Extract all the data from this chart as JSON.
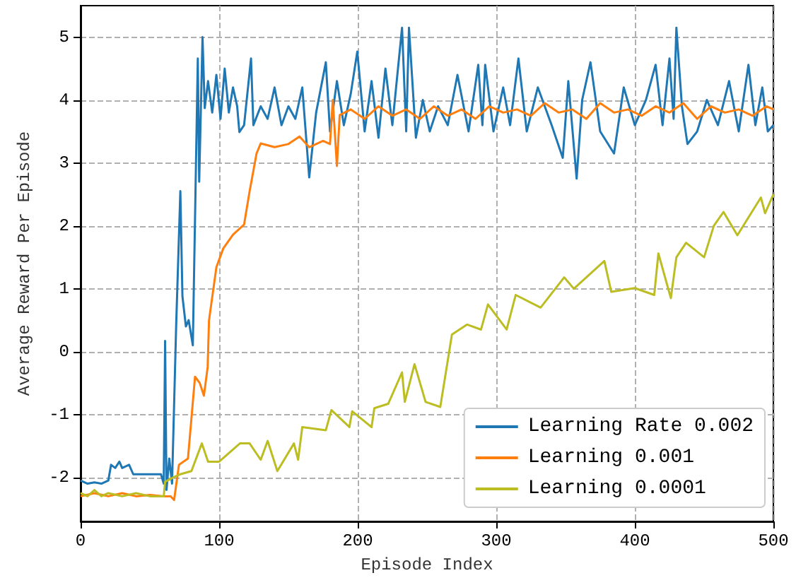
{
  "chart_data": {
    "type": "line",
    "xlabel": "Episode Index",
    "ylabel": "Average Reward Per Episode",
    "xlim": [
      0,
      500
    ],
    "xticks": [
      0,
      100,
      200,
      300,
      400,
      500
    ],
    "ylim": [
      -2.7,
      5.5
    ],
    "yticks": [
      -2,
      -1,
      0,
      1,
      2,
      3,
      4,
      5
    ],
    "grid": true,
    "legend": "bottom right",
    "line_style": "solid",
    "marker": "none",
    "series": [
      {
        "name": "Learning Rate 0.002",
        "color": "#1f77b4",
        "x": [
          0,
          5,
          10,
          15,
          20,
          22,
          25,
          28,
          30,
          35,
          38,
          40,
          50,
          58,
          60,
          61,
          62,
          64,
          66,
          69,
          72,
          73.5,
          76,
          78,
          81,
          84.6,
          85.6,
          88,
          89.6,
          92,
          95,
          98,
          101,
          104,
          107,
          110,
          113,
          114.6,
          118,
          123,
          124.7,
          130,
          135,
          140,
          145,
          150,
          155,
          160,
          165,
          170,
          177,
          180,
          185,
          190,
          195,
          199.7,
          205,
          210,
          215,
          220,
          225,
          232,
          235,
          237,
          242,
          247,
          252,
          258,
          265,
          272,
          280,
          287,
          290,
          292,
          298,
          305,
          310,
          316,
          322,
          330,
          340,
          348,
          352,
          358,
          362,
          368,
          375,
          385,
          392,
          400,
          408,
          415,
          420,
          425,
          428,
          430,
          434,
          438,
          445,
          452,
          460,
          468,
          475,
          482,
          487,
          492,
          496,
          500
        ],
        "values": [
          -2.05,
          -2.1,
          -2.08,
          -2.1,
          -2.05,
          -1.8,
          -1.85,
          -1.75,
          -1.85,
          -1.8,
          -1.95,
          -1.95,
          -1.95,
          -1.95,
          -2.1,
          0.17,
          -2.2,
          -1.7,
          -2.1,
          0.43,
          2.55,
          0.88,
          0.4,
          0.5,
          0.1,
          4.66,
          2.7,
          5.0,
          3.87,
          4.3,
          3.8,
          4.4,
          3.7,
          4.5,
          3.8,
          4.2,
          3.9,
          3.49,
          3.6,
          4.66,
          3.6,
          3.9,
          3.7,
          4.2,
          3.6,
          3.9,
          3.7,
          4.2,
          2.77,
          3.8,
          4.6,
          3.5,
          4.3,
          3.6,
          4.1,
          4.77,
          3.5,
          4.3,
          3.4,
          4.5,
          3.6,
          5.15,
          3.5,
          5.15,
          3.4,
          4.0,
          3.5,
          3.9,
          3.6,
          4.4,
          3.5,
          4.56,
          3.6,
          4.56,
          3.5,
          4.2,
          3.6,
          4.66,
          3.5,
          4.2,
          3.6,
          3.08,
          4.3,
          2.75,
          4.0,
          4.6,
          3.5,
          3.15,
          4.2,
          3.6,
          4.0,
          4.56,
          3.6,
          4.66,
          3.7,
          5.15,
          3.9,
          3.3,
          3.5,
          4.0,
          3.6,
          4.3,
          3.5,
          4.56,
          3.6,
          4.2,
          3.5,
          3.6
        ]
      },
      {
        "name": "Learning 0.001",
        "color": "#ff7f0e",
        "x": [
          0,
          10,
          20,
          30,
          40,
          50,
          60,
          65,
          67.5,
          71,
          77.5,
          82.6,
          86,
          89,
          91.7,
          92.7,
          98,
          103,
          110,
          118,
          122,
          127,
          130,
          140,
          150,
          158,
          165,
          175,
          180,
          182,
          185,
          187,
          195,
          205,
          215,
          225,
          235,
          245,
          255,
          265,
          275,
          285,
          295,
          305,
          315,
          325,
          335,
          345,
          355,
          365,
          375,
          385,
          395,
          405,
          415,
          425,
          435,
          445,
          455,
          465,
          475,
          485,
          495,
          500
        ],
        "values": [
          -2.3,
          -2.25,
          -2.3,
          -2.25,
          -2.3,
          -2.28,
          -2.3,
          -2.3,
          -2.36,
          -1.8,
          -1.7,
          -0.4,
          -0.5,
          -0.7,
          -0.25,
          0.5,
          1.34,
          1.64,
          1.86,
          2.02,
          2.55,
          3.15,
          3.31,
          3.25,
          3.3,
          3.42,
          3.25,
          3.35,
          3.3,
          4.0,
          2.95,
          3.76,
          3.85,
          3.7,
          3.9,
          3.75,
          3.85,
          3.7,
          3.9,
          3.75,
          3.85,
          3.7,
          3.9,
          3.8,
          3.85,
          3.75,
          3.95,
          3.8,
          3.85,
          3.7,
          3.95,
          3.8,
          3.85,
          3.75,
          3.9,
          3.8,
          3.95,
          3.7,
          3.9,
          3.8,
          3.85,
          3.75,
          3.9,
          3.85
        ]
      },
      {
        "name": "Learning 0.0001",
        "color": "#bcbd22",
        "x": [
          0,
          5,
          10,
          15,
          20,
          30,
          40,
          50,
          60,
          61,
          67,
          72,
          80,
          87.5,
          92,
          100,
          115,
          122,
          130,
          135,
          142,
          154,
          157,
          160,
          177,
          181,
          194,
          196,
          210,
          212,
          222,
          232,
          234,
          241,
          249,
          259.6,
          268,
          279,
          289,
          294,
          307.5,
          314,
          332,
          349,
          356,
          378,
          383,
          400,
          414,
          417,
          426,
          430,
          437,
          450,
          457,
          464,
          474,
          491,
          494,
          500
        ],
        "values": [
          -2.25,
          -2.3,
          -2.2,
          -2.3,
          -2.25,
          -2.3,
          -2.25,
          -2.3,
          -2.3,
          -2.07,
          -2.0,
          -1.95,
          -1.9,
          -1.46,
          -1.75,
          -1.75,
          -1.46,
          -1.46,
          -1.72,
          -1.42,
          -1.9,
          -1.46,
          -1.72,
          -1.2,
          -1.25,
          -0.93,
          -1.2,
          -0.95,
          -1.2,
          -0.9,
          -0.83,
          -0.33,
          -0.8,
          -0.2,
          -0.8,
          -0.88,
          0.27,
          0.43,
          0.35,
          0.75,
          0.35,
          0.9,
          0.7,
          1.18,
          1.0,
          1.44,
          0.95,
          1.01,
          0.9,
          1.56,
          0.85,
          1.5,
          1.73,
          1.5,
          2.0,
          2.22,
          1.85,
          2.45,
          2.2,
          2.5
        ]
      }
    ]
  }
}
